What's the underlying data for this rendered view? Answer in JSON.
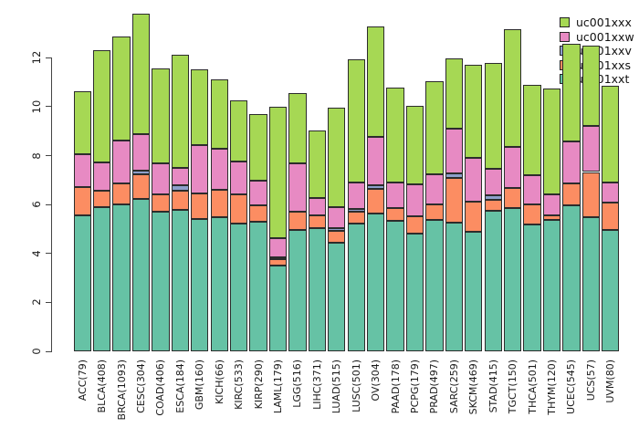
{
  "chart_data": {
    "type": "stacked_bar",
    "title": "",
    "xlabel": "",
    "ylabel": "",
    "yticks": [
      0,
      2,
      4,
      6,
      8,
      10,
      12
    ],
    "ylim": [
      0,
      14.3
    ],
    "grid": false,
    "legend_position": "top-right",
    "legend_entries": [
      "uc001xxx",
      "uc001xxw",
      "uc001xxv",
      "uc001xxs",
      "uc001xxt"
    ],
    "categories": [
      "ACC(79)",
      "BLCA(408)",
      "BRCA(1093)",
      "CESC(304)",
      "COAD(406)",
      "ESCA(184)",
      "GBM(160)",
      "KICH(66)",
      "KIRC(533)",
      "KIRP(290)",
      "LAML(179)",
      "LGG(516)",
      "LIHC(371)",
      "LUAD(515)",
      "LUSC(501)",
      "OV(304)",
      "PAAD(178)",
      "PCPG(179)",
      "PRAD(497)",
      "SARC(259)",
      "SKCM(469)",
      "STAD(415)",
      "TGCT(150)",
      "THCA(501)",
      "THYM(120)",
      "UCEC(545)",
      "UCS(57)",
      "UVM(80)"
    ],
    "series": [
      {
        "name": "uc001xxt",
        "color": "#66C2A5",
        "values": [
          5.56,
          5.9,
          6.0,
          6.24,
          5.72,
          5.78,
          5.41,
          5.5,
          5.22,
          5.28,
          3.52,
          4.97,
          5.02,
          4.43,
          5.23,
          5.63,
          5.35,
          4.81,
          5.39,
          5.26,
          4.89,
          5.75,
          5.84,
          5.2,
          5.37,
          5.97,
          5.47,
          4.97
        ]
      },
      {
        "name": "uc001xxs",
        "color": "#FC8D62",
        "values": [
          1.14,
          0.65,
          0.88,
          1.01,
          0.68,
          0.77,
          1.06,
          1.12,
          1.18,
          0.69,
          0.24,
          0.75,
          0.55,
          0.5,
          0.48,
          1.02,
          0.51,
          0.7,
          0.63,
          1.83,
          1.22,
          0.46,
          0.83,
          0.82,
          0.19,
          0.89,
          1.86,
          1.12
        ]
      },
      {
        "name": "uc001xxv",
        "color": "#8DA0CB",
        "values": [
          0,
          0,
          0,
          0.15,
          0,
          0.23,
          0,
          0,
          0,
          0,
          0.08,
          0,
          0,
          0.12,
          0.12,
          0.15,
          0,
          0,
          0,
          0.18,
          0,
          0.16,
          0,
          0,
          0,
          0,
          0,
          0
        ]
      },
      {
        "name": "uc001xxw",
        "color": "#E78AC3",
        "values": [
          1.37,
          1.18,
          1.72,
          1.49,
          1.3,
          0.72,
          1.96,
          1.66,
          1.35,
          0.99,
          0.8,
          1.97,
          0.7,
          0.85,
          1.07,
          1.96,
          1.05,
          1.31,
          1.2,
          1.84,
          1.81,
          1.09,
          1.7,
          1.19,
          0.85,
          1.72,
          1.87,
          0.81
        ]
      },
      {
        "name": "uc001xxx",
        "color": "#A6D854",
        "values": [
          2.58,
          4.59,
          4.27,
          4.91,
          3.86,
          4.62,
          3.1,
          2.85,
          2.51,
          2.74,
          5.36,
          2.85,
          2.77,
          4.05,
          5.03,
          4.52,
          3.87,
          3.21,
          3.82,
          2.85,
          3.79,
          4.31,
          4.81,
          3.69,
          4.32,
          3.98,
          3.29,
          3.95
        ]
      }
    ]
  }
}
